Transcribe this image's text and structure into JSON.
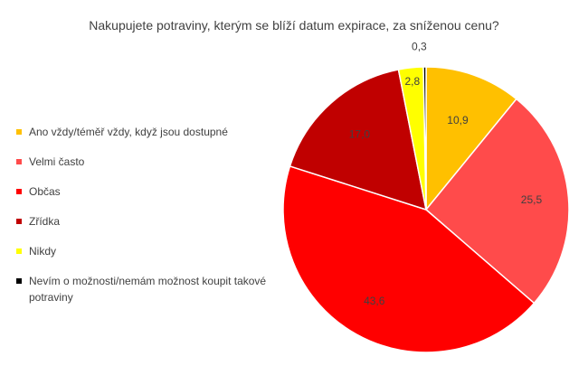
{
  "chart_data": {
    "type": "pie",
    "title": "Nakupujete potraviny, kterým se blíží datum expirace, za sníženou cenu?",
    "legend_position": "left",
    "slices": [
      {
        "name": "Ano vždy/téměř vždy, když jsou dostupné",
        "value": 10.9,
        "label": "10,9",
        "color": "#FFC000"
      },
      {
        "name": "Velmi často",
        "value": 25.5,
        "label": "25,5",
        "color": "#FF4B4B"
      },
      {
        "name": "Občas",
        "value": 43.6,
        "label": "43,6",
        "color": "#FF0000"
      },
      {
        "name": "Zřídka",
        "value": 17.0,
        "label": "17,0",
        "color": "#C00000"
      },
      {
        "name": "Nikdy",
        "value": 2.8,
        "label": "2,8",
        "color": "#FFFF00"
      },
      {
        "name": "Nevím o možnosti/nemám možnost koupit takové potraviny",
        "value": 0.3,
        "label": "0,3",
        "color": "#000000"
      }
    ]
  }
}
